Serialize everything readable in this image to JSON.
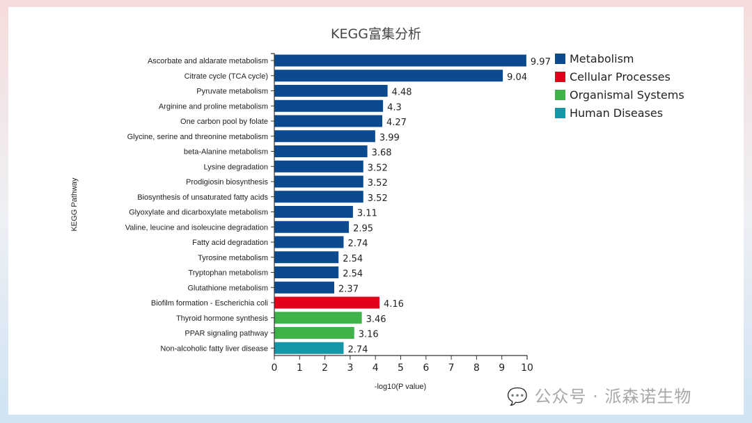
{
  "chart_data": {
    "type": "bar",
    "orientation": "horizontal",
    "title": "KEGG富集分析",
    "xlabel": "-log10(P value)",
    "ylabel": "KEGG Pathway",
    "xlim": [
      0,
      10
    ],
    "xticks": [
      0,
      1,
      2,
      3,
      4,
      5,
      6,
      7,
      8,
      9,
      10
    ],
    "grid": false,
    "legend_position": "top-right",
    "legend": [
      {
        "name": "Metabolism",
        "color": "#0b4a8f"
      },
      {
        "name": "Cellular Processes",
        "color": "#e3001b"
      },
      {
        "name": "Organismal Systems",
        "color": "#3fb24a"
      },
      {
        "name": "Human Diseases",
        "color": "#1597a8"
      }
    ],
    "bars": [
      {
        "label": "Ascorbate and aldarate metabolism",
        "value": 9.97,
        "category": 0
      },
      {
        "label": "Citrate cycle (TCA cycle)",
        "value": 9.04,
        "category": 0
      },
      {
        "label": "Pyruvate metabolism",
        "value": 4.48,
        "category": 0
      },
      {
        "label": "Arginine and proline metabolism",
        "value": 4.3,
        "category": 0
      },
      {
        "label": "One carbon pool by folate",
        "value": 4.27,
        "category": 0
      },
      {
        "label": "Glycine, serine and threonine metabolism",
        "value": 3.99,
        "category": 0
      },
      {
        "label": "beta-Alanine metabolism",
        "value": 3.68,
        "category": 0
      },
      {
        "label": "Lysine degradation",
        "value": 3.52,
        "category": 0
      },
      {
        "label": "Prodigiosin biosynthesis",
        "value": 3.52,
        "category": 0
      },
      {
        "label": "Biosynthesis of unsaturated fatty acids",
        "value": 3.52,
        "category": 0
      },
      {
        "label": "Glyoxylate and dicarboxylate metabolism",
        "value": 3.11,
        "category": 0
      },
      {
        "label": "Valine, leucine and isoleucine degradation",
        "value": 2.95,
        "category": 0
      },
      {
        "label": "Fatty acid degradation",
        "value": 2.74,
        "category": 0
      },
      {
        "label": "Tyrosine metabolism",
        "value": 2.54,
        "category": 0
      },
      {
        "label": "Tryptophan metabolism",
        "value": 2.54,
        "category": 0
      },
      {
        "label": "Glutathione metabolism",
        "value": 2.37,
        "category": 0
      },
      {
        "label": "Biofilm formation - Escherichia coli",
        "value": 4.16,
        "category": 1
      },
      {
        "label": "Thyroid hormone synthesis",
        "value": 3.46,
        "category": 2
      },
      {
        "label": "PPAR signaling pathway",
        "value": 3.16,
        "category": 2
      },
      {
        "label": "Non-alcoholic fatty liver disease",
        "value": 2.74,
        "category": 3
      }
    ]
  },
  "watermark": "公众号 · 派森诺生物"
}
